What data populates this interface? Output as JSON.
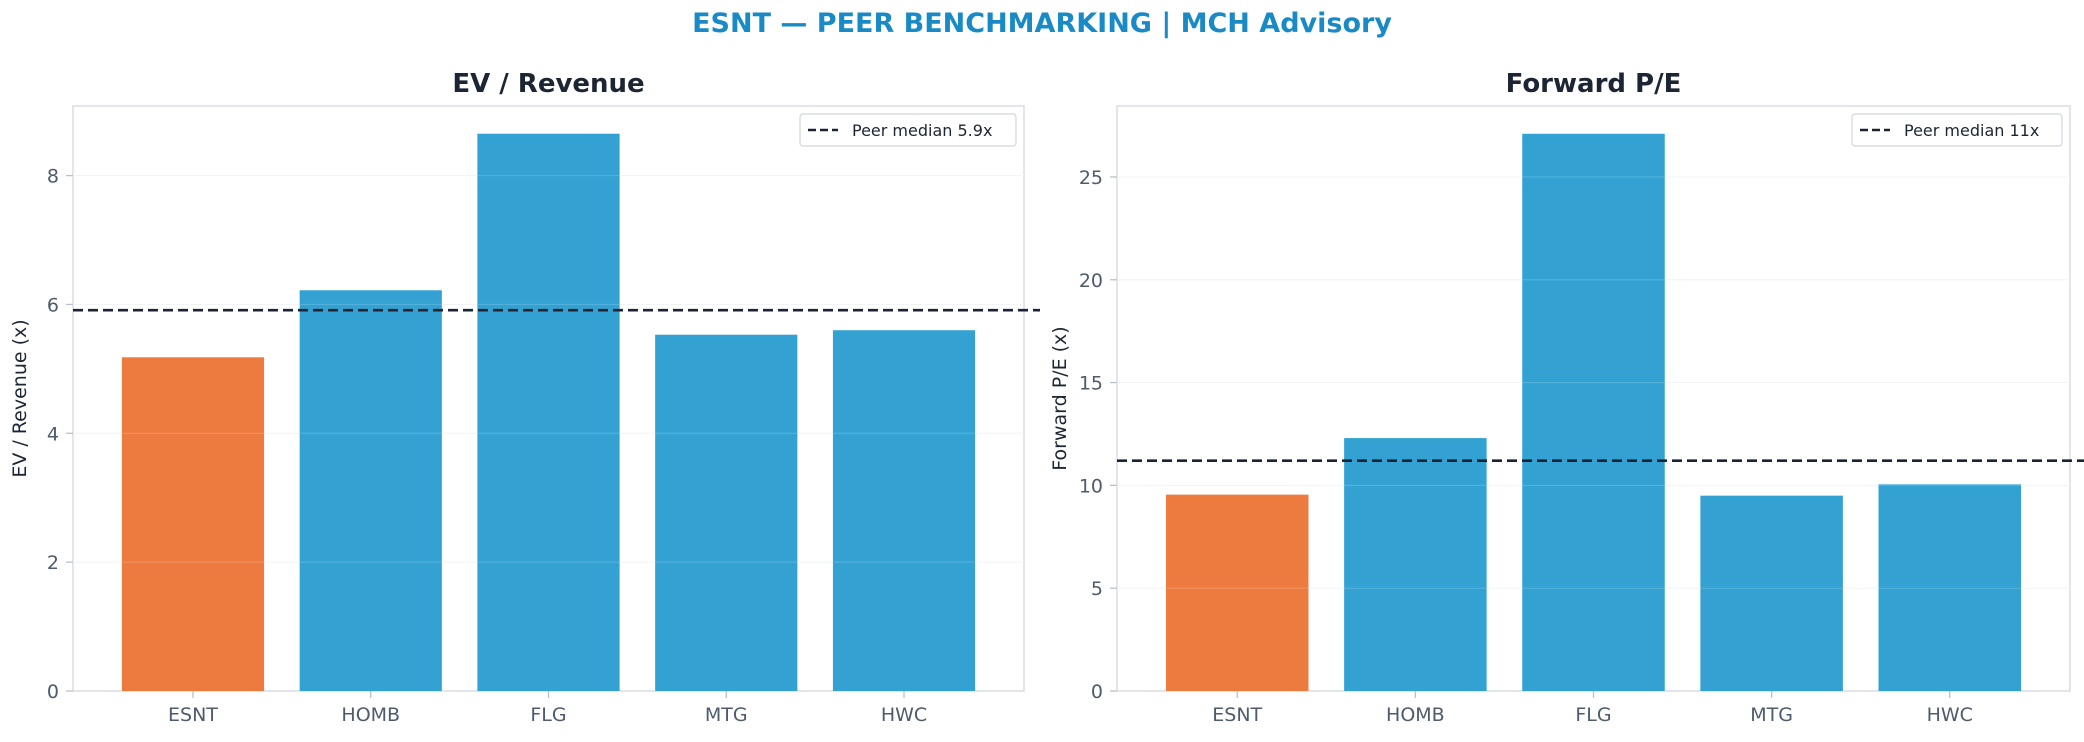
{
  "suptitle": "ESNT — PEER BENCHMARKING | MCH Advisory",
  "colors": {
    "subject": "#ED7B40",
    "peer": "#33A2D3",
    "median_line": "#1b2434",
    "axis_text": "#4d5b6d",
    "title_text": "#1c2533"
  },
  "chart_data": [
    {
      "type": "bar",
      "title": "EV / Revenue",
      "xlabel": "",
      "ylabel": "EV / Revenue (x)",
      "categories": [
        "ESNT",
        "HOMB",
        "FLG",
        "MTG",
        "HWC"
      ],
      "values": [
        5.18,
        6.22,
        8.65,
        5.53,
        5.6
      ],
      "highlight": "ESNT",
      "ylim": [
        0,
        9.08
      ],
      "yticks": [
        0,
        2,
        4,
        6,
        8
      ],
      "reference_line": {
        "label": "Peer median 5.9x",
        "value": 5.91,
        "style": "dashed"
      },
      "legend_position": "top-right",
      "grid": "horizontal"
    },
    {
      "type": "bar",
      "title": "Forward P/E",
      "xlabel": "",
      "ylabel": "Forward P/E (x)",
      "categories": [
        "ESNT",
        "HOMB",
        "FLG",
        "MTG",
        "HWC"
      ],
      "values": [
        9.55,
        12.3,
        27.1,
        9.5,
        10.05
      ],
      "highlight": "ESNT",
      "ylim": [
        0,
        28.45
      ],
      "yticks": [
        0,
        5,
        10,
        15,
        20,
        25
      ],
      "reference_line": {
        "label": "Peer median 11x",
        "value": 11.2,
        "style": "dashed"
      },
      "legend_position": "top-right",
      "grid": "horizontal"
    }
  ]
}
